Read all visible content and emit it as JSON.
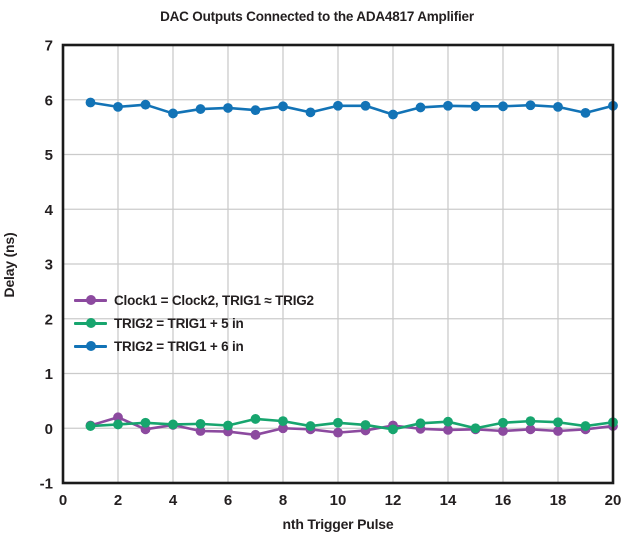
{
  "chart_data": {
    "type": "line",
    "title": "DAC Outputs Connected to the ADA4817 Amplifier",
    "xlabel": "nth Trigger Pulse",
    "ylabel": "Delay (ns)",
    "xlim": [
      0,
      20
    ],
    "ylim": [
      -1,
      7
    ],
    "x_ticks": [
      0,
      2,
      4,
      6,
      8,
      10,
      12,
      14,
      16,
      18,
      20
    ],
    "y_ticks": [
      -1,
      0,
      1,
      2,
      3,
      4,
      5,
      6,
      7
    ],
    "grid": true,
    "legend_position": "inside-left-middle",
    "x": [
      1,
      2,
      3,
      4,
      5,
      6,
      7,
      8,
      9,
      10,
      11,
      12,
      13,
      14,
      15,
      16,
      17,
      18,
      19,
      20
    ],
    "series": [
      {
        "name": "Clock1 = Clock2, TRIG1 ≈ TRIG2",
        "color": "#8c4a9f",
        "values": [
          0.05,
          0.2,
          -0.02,
          0.06,
          -0.05,
          -0.06,
          -0.12,
          0.0,
          -0.02,
          -0.08,
          -0.04,
          0.05,
          -0.01,
          -0.03,
          -0.02,
          -0.05,
          -0.02,
          -0.05,
          -0.02,
          0.04
        ]
      },
      {
        "name": "TRIG2 = TRIG1 + 5 in",
        "color": "#17a56e",
        "values": [
          0.04,
          0.07,
          0.1,
          0.07,
          0.08,
          0.05,
          0.17,
          0.13,
          0.04,
          0.1,
          0.06,
          -0.02,
          0.09,
          0.12,
          0.0,
          0.1,
          0.13,
          0.11,
          0.04,
          0.11
        ]
      },
      {
        "name": "TRIG2 = TRIG1 + 6 in",
        "color": "#1273b6",
        "values": [
          5.95,
          5.87,
          5.91,
          5.75,
          5.83,
          5.85,
          5.81,
          5.88,
          5.77,
          5.89,
          5.89,
          5.73,
          5.86,
          5.89,
          5.88,
          5.88,
          5.9,
          5.87,
          5.76,
          5.89
        ]
      }
    ],
    "colors": {
      "frame": "#1a1a1a",
      "grid": "#cbcbcb",
      "text": "#231f20",
      "background": "#ffffff"
    }
  }
}
